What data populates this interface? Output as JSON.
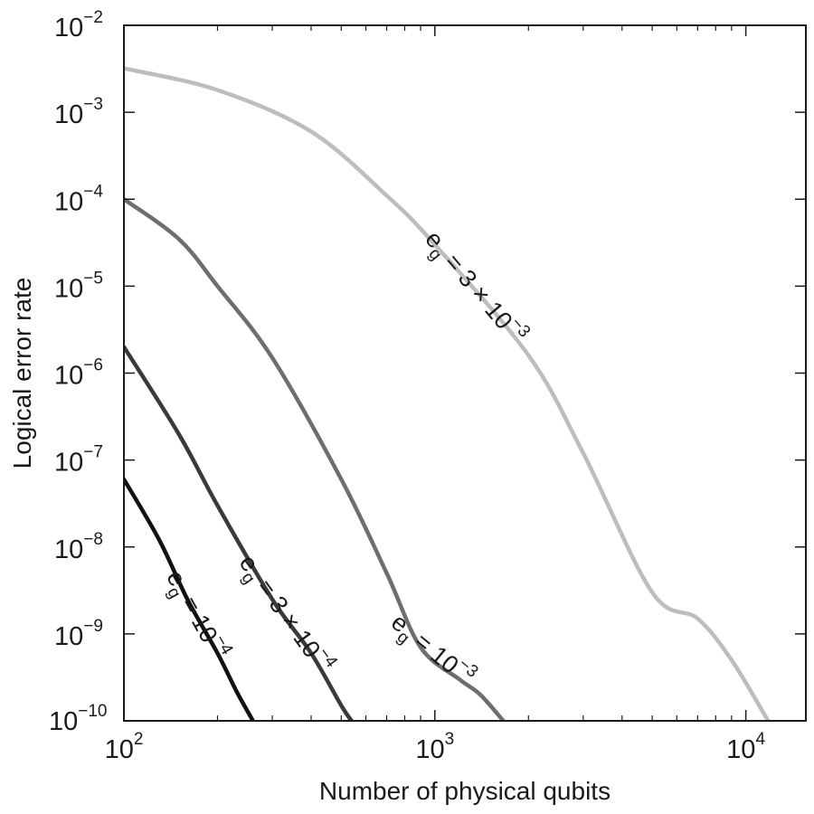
{
  "chart_data": {
    "type": "line",
    "xlabel": "Number of physical qubits",
    "ylabel": "Logical error rate",
    "x_scale": "log",
    "y_scale": "log",
    "xlim": [
      100,
      15600
    ],
    "ylim": [
      1e-10,
      0.01
    ],
    "grid": false,
    "x_ticks": [
      {
        "value": 100,
        "base": "10",
        "exp": "2"
      },
      {
        "value": 1000,
        "base": "10",
        "exp": "3"
      },
      {
        "value": 10000,
        "base": "10",
        "exp": "4"
      }
    ],
    "y_ticks": [
      {
        "value": 1e-10,
        "base": "10",
        "exp": "−10"
      },
      {
        "value": 1e-09,
        "base": "10",
        "exp": "−9"
      },
      {
        "value": 1e-08,
        "base": "10",
        "exp": "−8"
      },
      {
        "value": 1e-07,
        "base": "10",
        "exp": "−7"
      },
      {
        "value": 1e-06,
        "base": "10",
        "exp": "−6"
      },
      {
        "value": 1e-05,
        "base": "10",
        "exp": "−5"
      },
      {
        "value": 0.0001,
        "base": "10",
        "exp": "−4"
      },
      {
        "value": 0.001,
        "base": "10",
        "exp": "−3"
      },
      {
        "value": 0.01,
        "base": "10",
        "exp": "−2"
      }
    ],
    "series": [
      {
        "label_main": "e",
        "label_sub": "g",
        "label_rest": " = 3 × 10",
        "label_sup": "−3",
        "color": "#bdbdbd",
        "x": [
          100,
          200,
          400,
          700,
          1000,
          2000,
          3000,
          5000,
          7000,
          9000,
          11800
        ],
        "y": [
          0.0032,
          0.0018,
          0.0006,
          0.00011,
          3e-05,
          1.6e-06,
          1.2e-07,
          3e-09,
          1.5e-09,
          5e-10,
          1e-10
        ]
      },
      {
        "label_main": "e",
        "label_sub": "g",
        "label_rest": " = 10",
        "label_sup": "−3",
        "color": "#6e6e6e",
        "x": [
          100,
          150,
          200,
          300,
          500,
          700,
          900,
          1200,
          1400,
          1660
        ],
        "y": [
          0.0001,
          3.5e-05,
          1e-05,
          1.5e-06,
          6e-08,
          5e-09,
          7e-10,
          3e-10,
          2e-10,
          1e-10
        ]
      },
      {
        "label_main": "e",
        "label_sub": "g",
        "label_rest": " = 3 × 10",
        "label_sup": "−4",
        "color": "#3a3a3a",
        "x": [
          100,
          150,
          200,
          300,
          400,
          500,
          540
        ],
        "y": [
          2e-06,
          2e-07,
          3e-08,
          2.5e-09,
          6e-10,
          1.5e-10,
          1e-10
        ]
      },
      {
        "label_main": "e",
        "label_sub": "g",
        "label_rest": " = 10",
        "label_sup": "−4",
        "color": "#111111",
        "x": [
          100,
          130,
          160,
          200,
          230,
          260
        ],
        "y": [
          6e-08,
          1.2e-08,
          2.5e-09,
          6e-10,
          2.2e-10,
          1e-10
        ]
      }
    ]
  }
}
